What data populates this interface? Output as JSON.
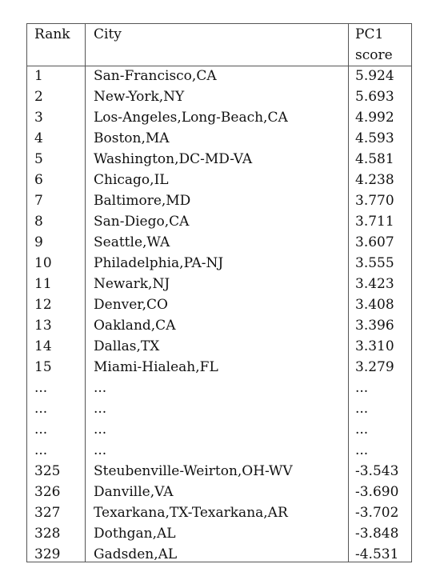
{
  "table": {
    "headers": {
      "rank": "Rank",
      "city": "City",
      "pc1_line1": "PC1",
      "pc1_line2": "score"
    },
    "rows": [
      {
        "rank": "1",
        "city": "San-Francisco,CA",
        "score": "5.924"
      },
      {
        "rank": "2",
        "city": "New-York,NY",
        "score": "5.693"
      },
      {
        "rank": "3",
        "city": "Los-Angeles,Long-Beach,CA",
        "score": "4.992"
      },
      {
        "rank": "4",
        "city": "Boston,MA",
        "score": "4.593"
      },
      {
        "rank": "5",
        "city": "Washington,DC-MD-VA",
        "score": "4.581"
      },
      {
        "rank": "6",
        "city": "Chicago,IL",
        "score": "4.238"
      },
      {
        "rank": "7",
        "city": "Baltimore,MD",
        "score": "3.770"
      },
      {
        "rank": "8",
        "city": "San-Diego,CA",
        "score": "3.711"
      },
      {
        "rank": "9",
        "city": "Seattle,WA",
        "score": "3.607"
      },
      {
        "rank": "10",
        "city": "Philadelphia,PA-NJ",
        "score": "3.555"
      },
      {
        "rank": "11",
        "city": "Newark,NJ",
        "score": "3.423"
      },
      {
        "rank": "12",
        "city": "Denver,CO",
        "score": "3.408"
      },
      {
        "rank": "13",
        "city": "Oakland,CA",
        "score": "3.396"
      },
      {
        "rank": "14",
        "city": "Dallas,TX",
        "score": "3.310"
      },
      {
        "rank": "15",
        "city": "Miami-Hialeah,FL",
        "score": "3.279"
      },
      {
        "rank": "...",
        "city": "...",
        "score": "..."
      },
      {
        "rank": "...",
        "city": "...",
        "score": "..."
      },
      {
        "rank": "...",
        "city": "...",
        "score": "..."
      },
      {
        "rank": "...",
        "city": "...",
        "score": "..."
      },
      {
        "rank": "325",
        "city": "Steubenville-Weirton,OH-WV",
        "score": "-3.543"
      },
      {
        "rank": "326",
        "city": "Danville,VA",
        "score": "-3.690"
      },
      {
        "rank": "327",
        "city": "Texarkana,TX-Texarkana,AR",
        "score": "-3.702"
      },
      {
        "rank": "328",
        "city": "Dothgan,AL",
        "score": "-3.848"
      },
      {
        "rank": "329",
        "city": "Gadsden,AL",
        "score": "-4.531"
      }
    ]
  }
}
